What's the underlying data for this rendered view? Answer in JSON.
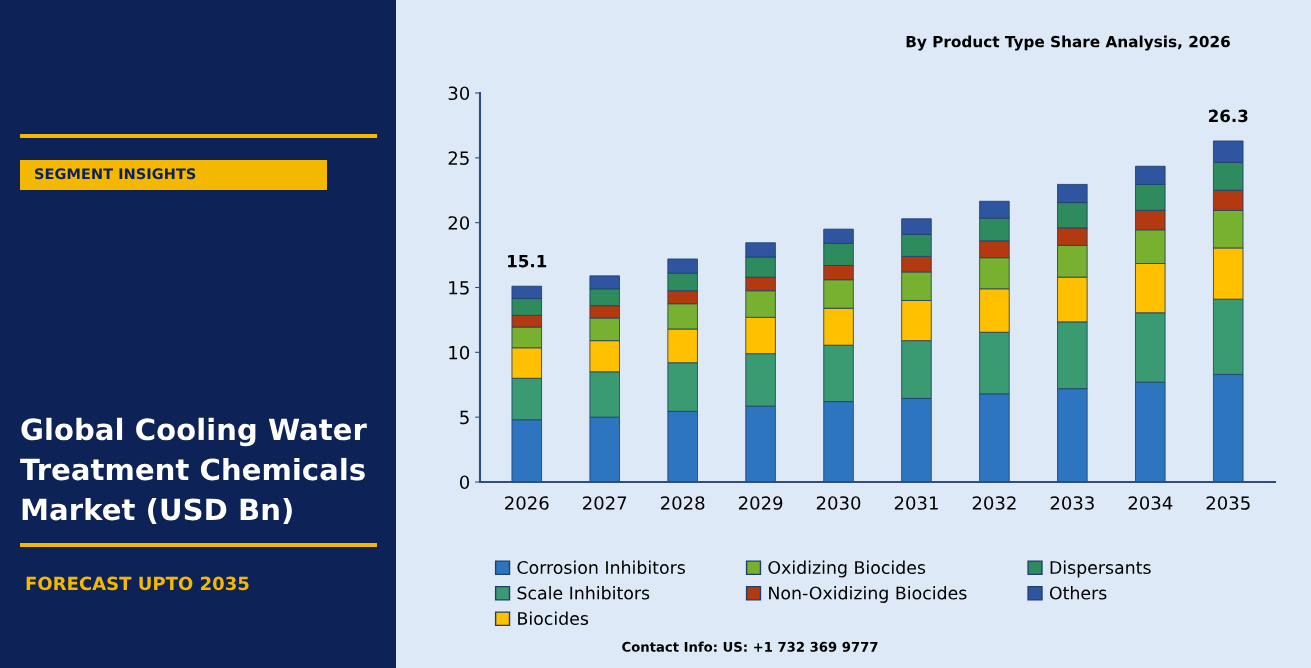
{
  "chart_data": {
    "type": "bar",
    "stacked": true,
    "title": "Global Cooling Water Treatment Chemicals Market (USD Bn)",
    "subtitle": "By Product Type Share Analysis, 2026",
    "annotations": [
      "SEGMENT INSIGHTS",
      "FORECAST UPTO 2035",
      "Contact Info: US: +1 732 369 9777"
    ],
    "categories": [
      "2026",
      "2027",
      "2028",
      "2029",
      "2030",
      "2031",
      "2032",
      "2033",
      "2034",
      "2035"
    ],
    "series": [
      {
        "name": "Corrosion Inhibitors",
        "color": "#2e75c0",
        "values": [
          4.8,
          5.0,
          5.45,
          5.85,
          6.2,
          6.45,
          6.8,
          7.2,
          7.7,
          8.3
        ]
      },
      {
        "name": "Scale Inhibitors",
        "color": "#3a9a72",
        "values": [
          3.2,
          3.5,
          3.75,
          4.05,
          4.35,
          4.45,
          4.75,
          5.15,
          5.35,
          5.8
        ]
      },
      {
        "name": "Biocides",
        "color": "#ffc000",
        "values": [
          2.35,
          2.4,
          2.6,
          2.8,
          2.85,
          3.1,
          3.35,
          3.45,
          3.8,
          3.95
        ]
      },
      {
        "name": "Oxidizing Biocides",
        "color": "#78b030",
        "values": [
          1.6,
          1.75,
          1.95,
          2.05,
          2.2,
          2.2,
          2.4,
          2.45,
          2.6,
          2.9
        ]
      },
      {
        "name": "Non-Oxidizing Biocides",
        "color": "#b33a10",
        "values": [
          0.9,
          0.95,
          1.0,
          1.05,
          1.1,
          1.2,
          1.3,
          1.35,
          1.5,
          1.55
        ]
      },
      {
        "name": "Dispersants",
        "color": "#2e8b5e",
        "values": [
          1.3,
          1.3,
          1.35,
          1.55,
          1.7,
          1.7,
          1.75,
          1.95,
          2.0,
          2.15
        ]
      },
      {
        "name": "Others",
        "color": "#2f55a0",
        "values": [
          0.95,
          1.0,
          1.1,
          1.1,
          1.1,
          1.2,
          1.3,
          1.4,
          1.4,
          1.65
        ]
      }
    ],
    "totals": [
      "15.1",
      null,
      null,
      null,
      null,
      null,
      null,
      null,
      null,
      "26.3"
    ],
    "ylim": [
      0,
      30
    ],
    "yticks": [
      0,
      5,
      10,
      15,
      20,
      25,
      30
    ],
    "grid": false,
    "legend": "bottom"
  }
}
